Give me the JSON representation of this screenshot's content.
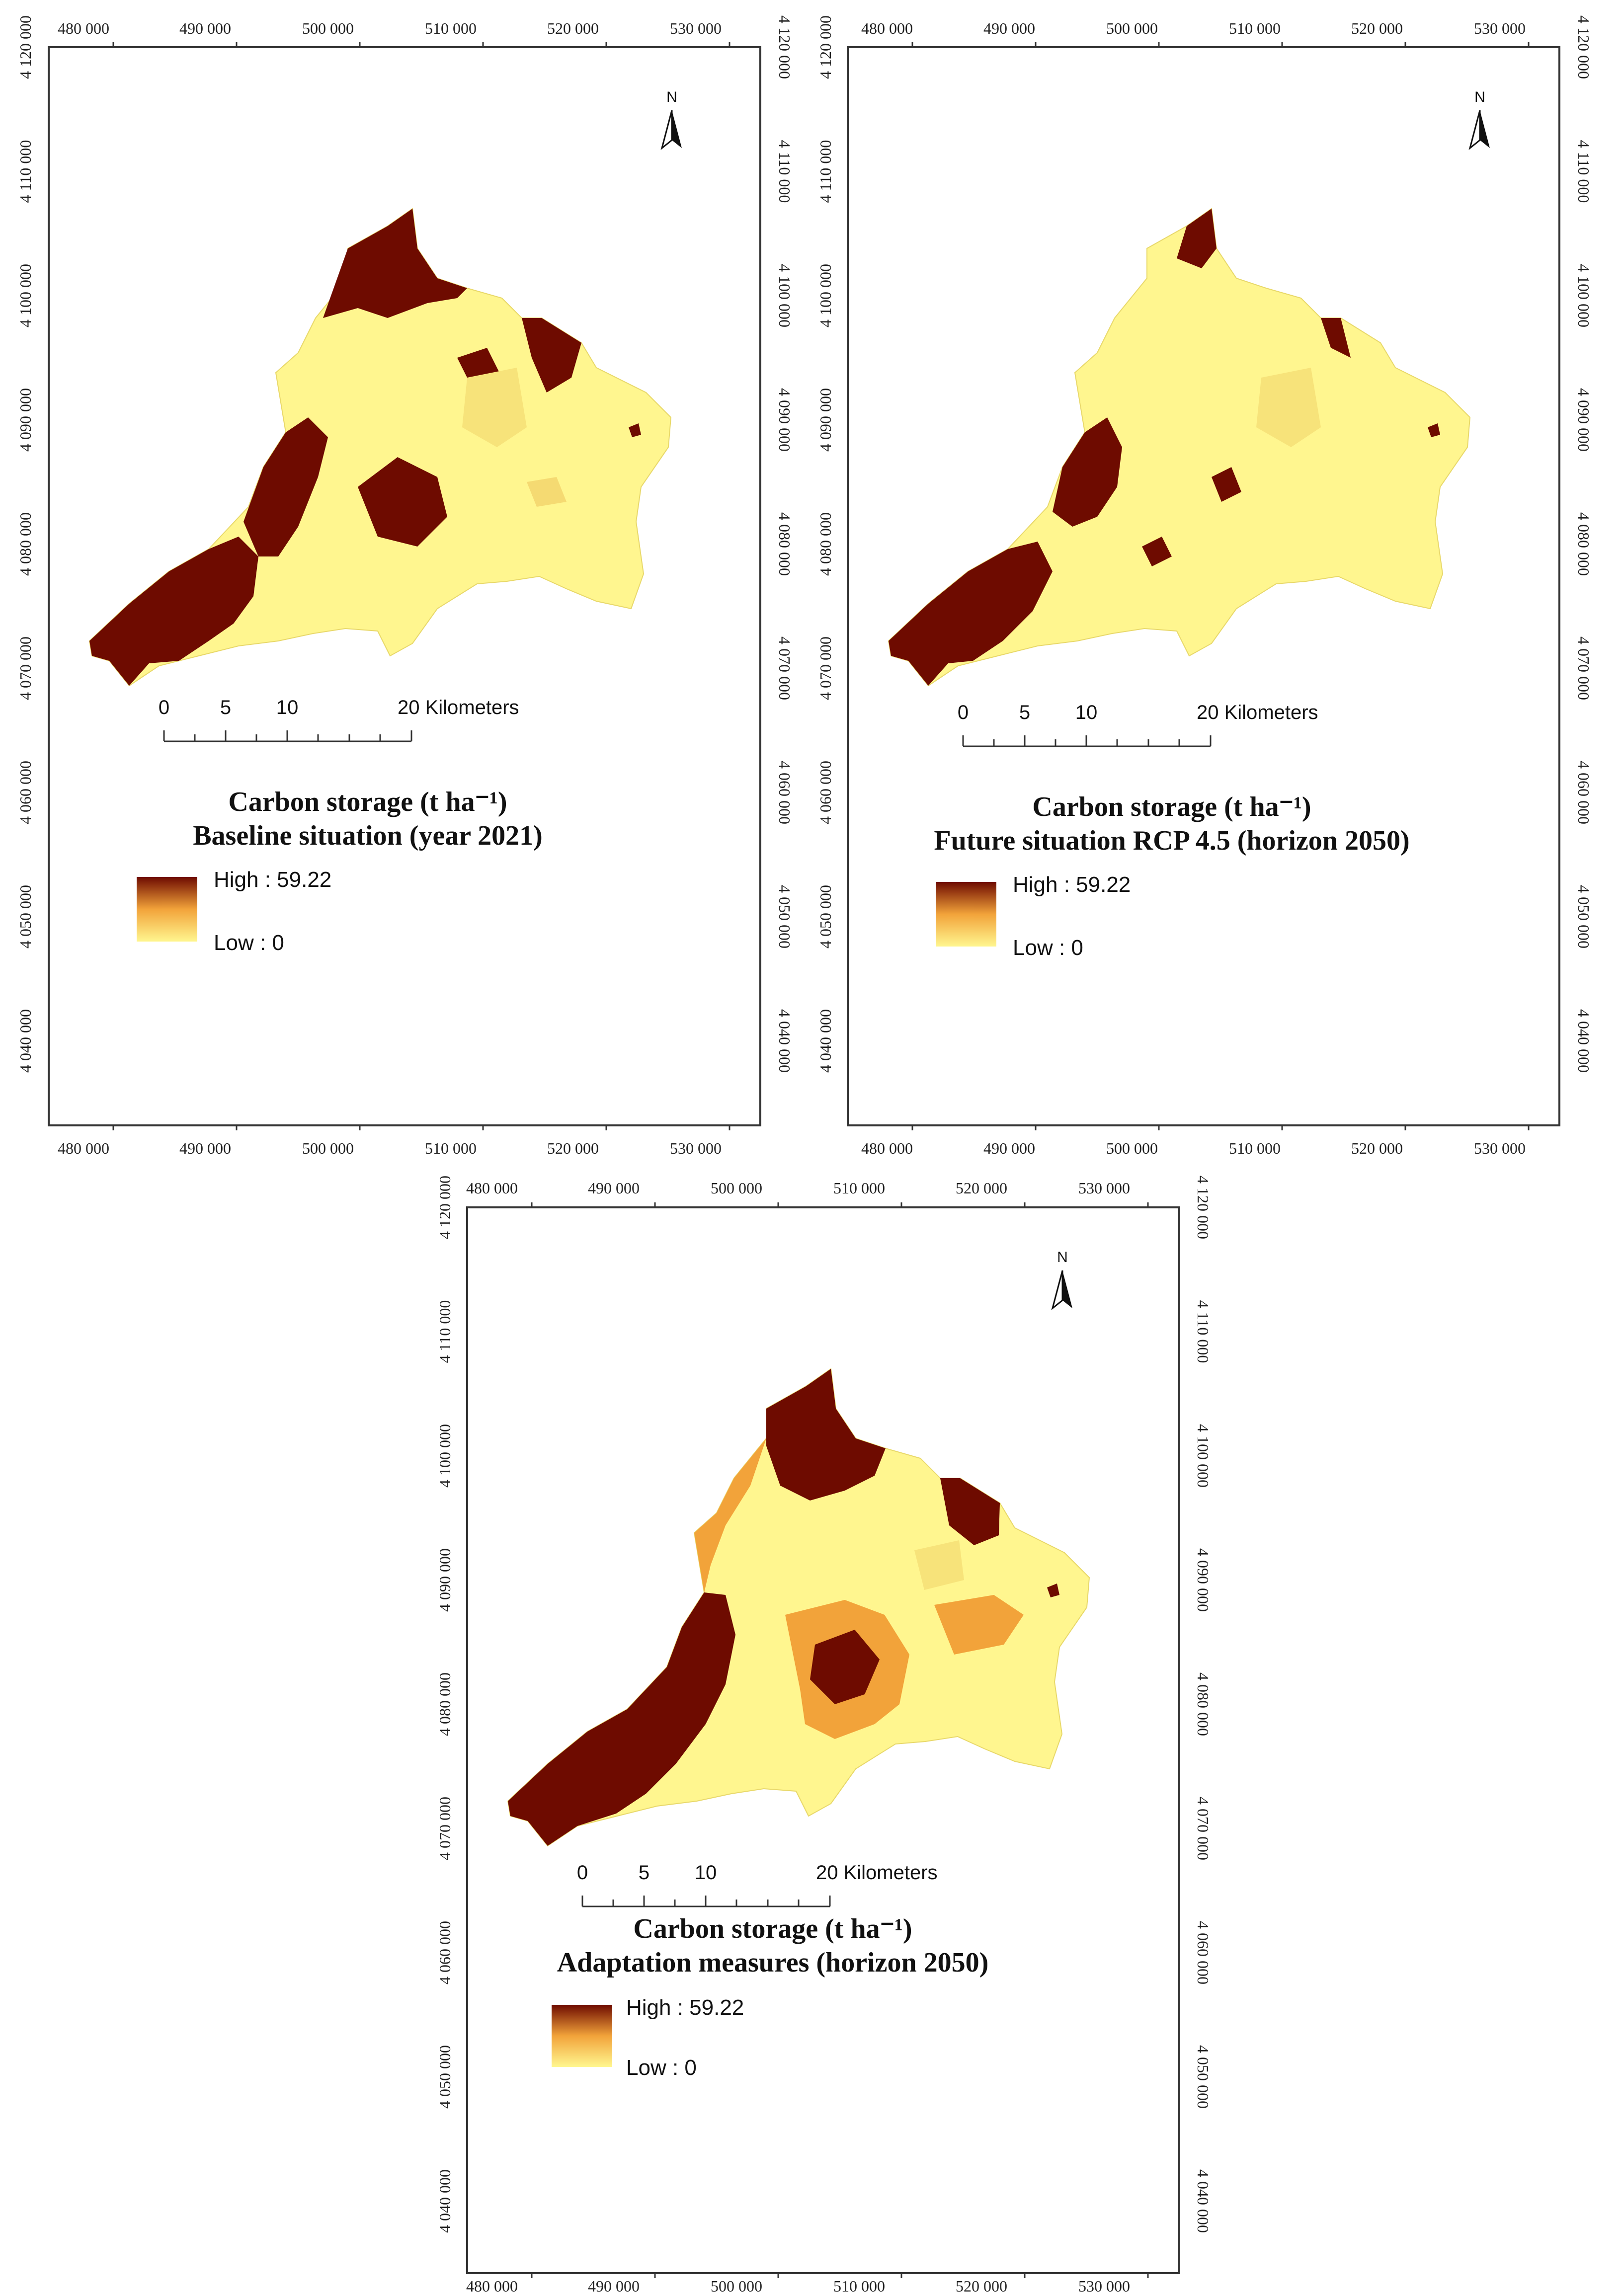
{
  "colors": {
    "low": "#fff68f",
    "mid": "#f2a33a",
    "high": "#6e0b00",
    "frame": "#333333"
  },
  "map_common": {
    "x_ticks": [
      "480 000",
      "490 000",
      "500 000",
      "510 000",
      "520 000",
      "530 000"
    ],
    "y_ticks": [
      "4 120 000",
      "4 110 000",
      "4 100 000",
      "4 090 000",
      "4 080 000",
      "4 070 000",
      "4 060 000",
      "4 050 000",
      "4 040 000"
    ],
    "north_label": "N",
    "north_icon": "north-arrow-icon",
    "scale_labels": [
      "0",
      "5",
      "10",
      "20 Kilometers"
    ],
    "legend_high": "High : 59.22",
    "legend_low": "Low : 0"
  },
  "maps": [
    {
      "title_line1": "Carbon storage (t ha⁻¹)",
      "title_line2": "Baseline situation (year 2021)"
    },
    {
      "title_line1": "Carbon storage (t ha⁻¹)",
      "title_line2": "Future situation RCP 4.5 (horizon 2050)"
    },
    {
      "title_line1": "Carbon storage (t ha⁻¹)",
      "title_line2": "Adaptation measures (horizon 2050)"
    }
  ]
}
